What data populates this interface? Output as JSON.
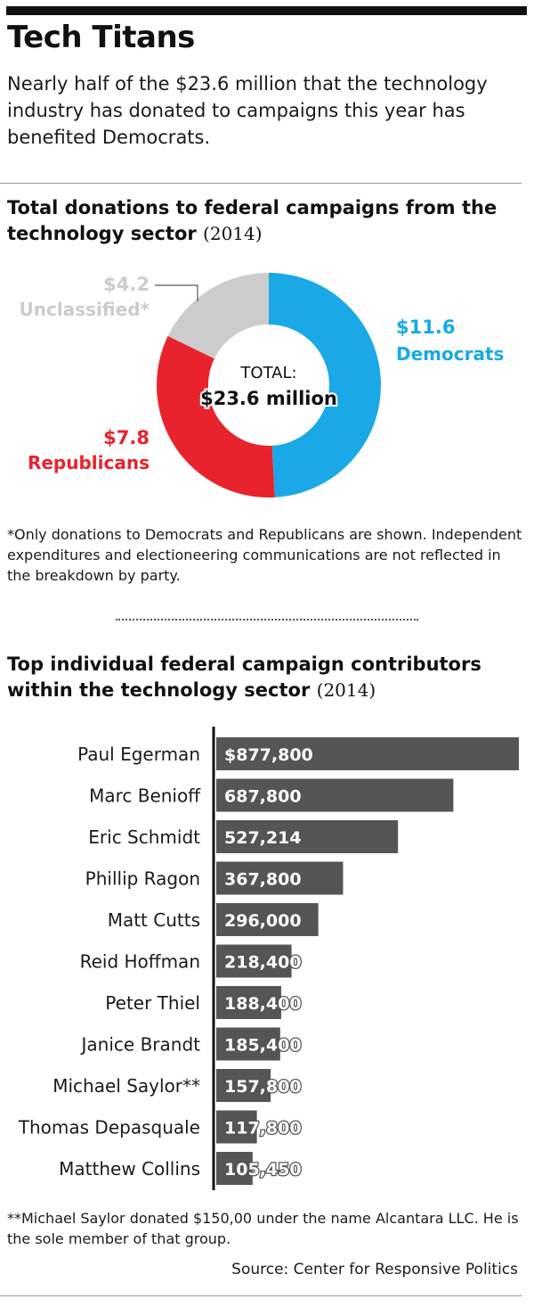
{
  "header": {
    "title": "Tech Titans",
    "subtitle": "Nearly half of the  $23.6 million that the technology industry has donated to campaigns this year has benefited Democrats."
  },
  "donut_section": {
    "title": "Total donations to federal campaigns from the technology sector",
    "year": "(2014)",
    "center_label": "TOTAL:",
    "center_value": "$23.6 million",
    "footnote": "*Only donations to Democrats and Republicans are shown. Independent expenditures and electioneering communications are not reflected in the breakdown by party."
  },
  "bar_section": {
    "title": "Top individual federal campaign contributors within the technology sector",
    "year": "(2014)",
    "footnote": "**Michael Saylor donated $150,00 under the name Alcantara LLC. He is the sole member of that group."
  },
  "source": "Source: Center for Responsive Politics",
  "colors": {
    "democrats": "#1aa9e6",
    "republicans": "#e8232d",
    "unclassified": "#cccccc",
    "bar": "#555555"
  },
  "chart_data": [
    {
      "type": "pie",
      "title": "Total donations to federal campaigns from the technology sector (2014)",
      "categories": [
        "Democrats",
        "Republicans",
        "Unclassified*"
      ],
      "values": [
        11.6,
        7.8,
        4.2
      ],
      "value_labels": [
        "$11.6",
        "$7.8",
        "$4.2"
      ],
      "total_label": "$23.6 million"
    },
    {
      "type": "bar",
      "orientation": "horizontal",
      "title": "Top individual federal campaign contributors within the technology sector (2014)",
      "categories": [
        "Paul Egerman",
        "Marc Benioff",
        "Eric Schmidt",
        "Phillip Ragon",
        "Matt Cutts",
        "Reid Hoffman",
        "Peter Thiel",
        "Janice Brandt",
        "Michael Saylor**",
        "Thomas Depasquale",
        "Matthew Collins"
      ],
      "values": [
        877800,
        687800,
        527214,
        367800,
        296000,
        218400,
        188400,
        185400,
        157800,
        117800,
        105450
      ],
      "value_labels": [
        "$877,800",
        "687,800",
        "527,214",
        "367,800",
        "296,000",
        "218,400",
        "188,400",
        "185,400",
        "157,800",
        "117,800",
        "105,450"
      ]
    }
  ]
}
